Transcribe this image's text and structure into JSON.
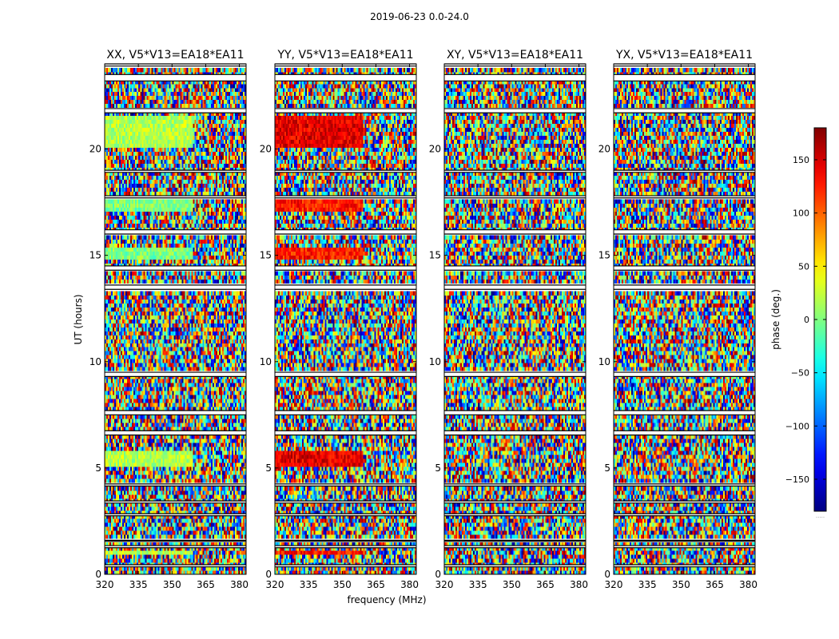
{
  "figure": {
    "suptitle": "2019-06-23 0.0-24.0"
  },
  "chart_data": {
    "type": "heatmap",
    "quantity": "phase",
    "colormap": "jet",
    "panels": [
      {
        "title": "XX, V5*V13=EA18*EA11",
        "product": "XX",
        "coherent_bands": [
          [
            0.85,
            1.2,
            0.55
          ],
          [
            5.0,
            5.8,
            0.55
          ],
          [
            14.8,
            15.3,
            0.5
          ],
          [
            17.0,
            17.6,
            0.5
          ],
          [
            20.0,
            21.5,
            0.55
          ]
        ]
      },
      {
        "title": "YY, V5*V13=EA18*EA11",
        "product": "YY",
        "coherent_bands": [
          [
            0.85,
            1.2,
            0.85
          ],
          [
            5.0,
            5.8,
            0.9
          ],
          [
            14.8,
            15.3,
            0.85
          ],
          [
            17.0,
            17.6,
            0.85
          ],
          [
            20.0,
            21.5,
            0.9
          ]
        ]
      },
      {
        "title": "XY, V5*V13=EA18*EA11",
        "product": "XY",
        "coherent_bands": []
      },
      {
        "title": "YX, V5*V13=EA18*EA11",
        "product": "YX",
        "coherent_bands": []
      }
    ],
    "xlabel": "frequency (MHz)",
    "ylabel": "UT (hours)",
    "xticks": [
      320,
      335,
      350,
      365,
      380
    ],
    "xlim": [
      320,
      383
    ],
    "yticks": [
      0,
      5,
      10,
      15,
      20
    ],
    "ylim": [
      0,
      24
    ],
    "flagged_hours": [
      [
        0.35,
        0.45
      ],
      [
        1.25,
        1.35
      ],
      [
        1.55,
        1.6
      ],
      [
        2.75,
        2.85
      ],
      [
        3.35,
        3.45
      ],
      [
        4.15,
        4.25
      ],
      [
        6.55,
        6.75
      ],
      [
        7.5,
        7.7
      ],
      [
        9.3,
        9.5
      ],
      [
        13.4,
        13.6
      ],
      [
        14.3,
        14.5
      ],
      [
        16.0,
        16.2
      ],
      [
        17.7,
        17.8
      ],
      [
        18.9,
        19.0
      ],
      [
        21.7,
        21.9
      ],
      [
        23.2,
        23.5
      ],
      [
        23.9,
        24.0
      ]
    ],
    "colorbar": {
      "label": "phase (deg.)",
      "ticks": [
        150,
        100,
        50,
        0,
        -50,
        -100,
        -150
      ],
      "tick_labels": [
        "150",
        "100",
        "50",
        "0",
        "−50",
        "−100",
        "−150"
      ],
      "range": [
        -180,
        180
      ],
      "bottom_marker": "....."
    }
  }
}
